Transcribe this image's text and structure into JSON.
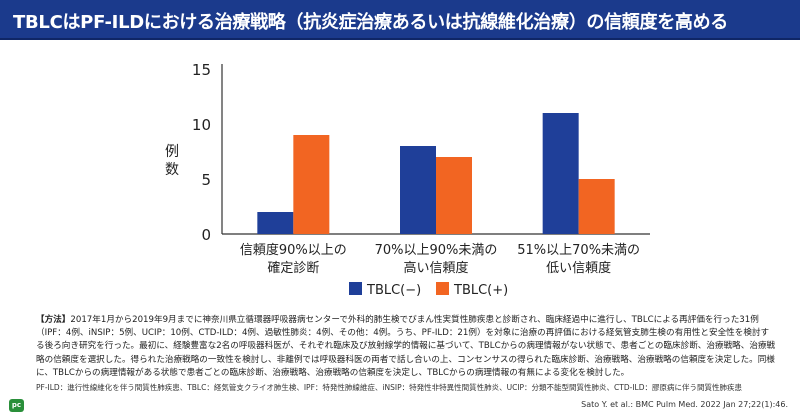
{
  "header": {
    "title": "TBLCはPF-ILDにおける治療戦略（抗炎症治療あるいは抗線維化治療）の信頼度を高める"
  },
  "chart_data": {
    "type": "bar",
    "title": "",
    "ylabel": "例数",
    "xlabel": "",
    "ylim": [
      0,
      15
    ],
    "yticks": [
      0,
      5,
      10,
      15
    ],
    "categories": [
      [
        "信頼度90%以上の",
        "確定診断"
      ],
      [
        "70%以上90%未満の",
        "高い信頼度"
      ],
      [
        "51%以上70%未満の",
        "低い信頼度"
      ]
    ],
    "series": [
      {
        "name": "TBLC(−)",
        "color": "#1f3f99",
        "values": [
          2,
          8,
          11
        ]
      },
      {
        "name": "TBLC(+)",
        "color": "#f26522",
        "values": [
          9,
          7,
          5
        ]
      }
    ],
    "legend_position": "bottom",
    "grid": false
  },
  "method": {
    "label": "【方法】",
    "text": "2017年1月から2019年9月までに神奈川県立循環器呼吸器病センターで外科的肺生検でびまん性実質性肺疾患と診断され、臨床経過中に進行し、TBLCによる再評価を行った31例（IPF：4例、iNSIP：5例、UCIP：10例、CTD-ILD：4例、過敏性肺炎：4例、その他：4例。うち、PF-ILD：21例）を対象に治療の再評価における経気管支肺生検の有用性と安全性を検討する後ろ向き研究を行った。最初に、経験豊富な2名の呼吸器科医が、それぞれ臨床及び放射線学的情報に基づいて、TBLCからの病理情報がない状態で、患者ごとの臨床診断、治療戦略、治療戦略の信頼度を選択した。得られた治療戦略の一致性を検討し、非離例では呼吸器科医の両者で話し合いの上、コンセンサスの得られた臨床診断、治療戦略、治療戦略の信頼度を決定した。同様に、TBLCからの病理情報がある状態で患者ごとの臨床診断、治療戦略、治療戦略の信頼度を決定し、TBLCからの病理情報の有無による変化を検討した。"
  },
  "abbreviations": "PF-ILD：進行性線維化を伴う間質性肺疾患、TBLC：経気管支クライオ肺生検、IPF：特発性肺線維症、iNSIP：特発性非特異性間質性肺炎、UCIP：分類不能型間質性肺炎、CTD-ILD：膠原病に伴う間質性肺疾患",
  "citation": "Sato Y. et al.: BMC Pulm Med. 2022 Jan 27;22(1):46.",
  "logo": {
    "text": "pc",
    "color": "#2a8f3a"
  }
}
